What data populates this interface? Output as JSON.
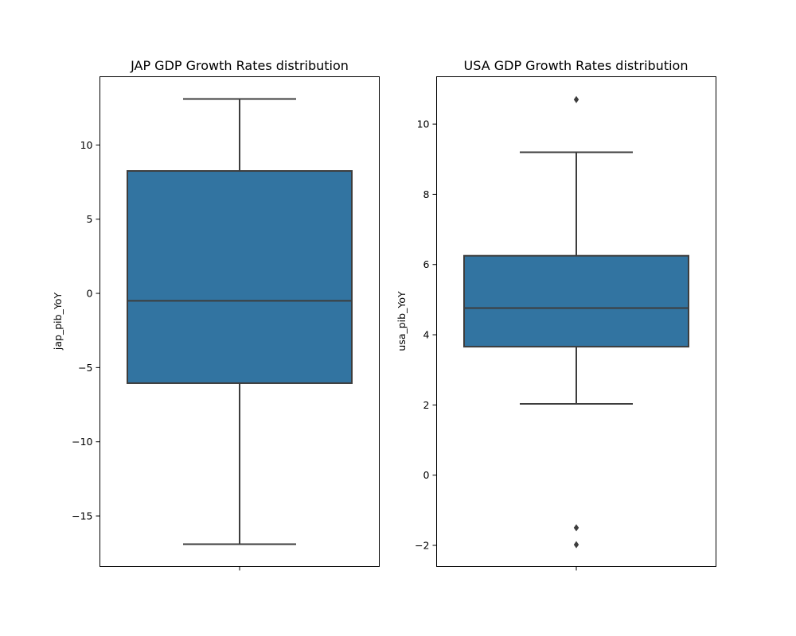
{
  "chart_data": [
    {
      "type": "box",
      "title": "JAP GDP Growth Rates distribution",
      "xlabel": "",
      "ylabel": "jap_pib_YoY",
      "ylim": [
        -18.4,
        14.6
      ],
      "yticks": [
        -15,
        -10,
        -5,
        0,
        5,
        10
      ],
      "ytick_labels": [
        "−15",
        "−10",
        "−5",
        "0",
        "5",
        "10"
      ],
      "box": {
        "whisker_low": -16.9,
        "q1": -6.05,
        "median": -0.5,
        "q3": 8.25,
        "whisker_high": 13.1,
        "outliers": []
      },
      "color": "#3274a1",
      "edge_color": "#3d3d3d",
      "grid": false
    },
    {
      "type": "box",
      "title": "USA GDP Growth Rates distribution",
      "xlabel": "",
      "ylabel": "usa_pib_YoY",
      "ylim": [
        -2.6,
        11.35
      ],
      "yticks": [
        -2,
        0,
        2,
        4,
        6,
        8,
        10
      ],
      "ytick_labels": [
        "−2",
        "0",
        "2",
        "4",
        "6",
        "8",
        "10"
      ],
      "box": {
        "whisker_low": 2.03,
        "q1": 3.66,
        "median": 4.76,
        "q3": 6.25,
        "whisker_high": 9.2,
        "outliers": [
          10.7,
          -1.5,
          -1.98
        ]
      },
      "color": "#3274a1",
      "edge_color": "#3d3d3d",
      "grid": false
    }
  ]
}
